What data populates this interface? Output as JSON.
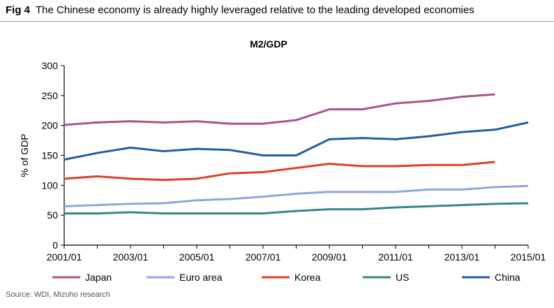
{
  "figure": {
    "label": "Fig 4",
    "caption": "The Chinese economy is already highly leveraged relative to the leading developed economies",
    "source": "Source: WDI, Mizuho research"
  },
  "chart_data": {
    "type": "line",
    "title": "M2/GDP",
    "xlabel": "",
    "ylabel": "% of GDP",
    "ylim": [
      0,
      300
    ],
    "yticks": [
      0,
      50,
      100,
      150,
      200,
      250,
      300
    ],
    "x": [
      "2001/01",
      "2002/01",
      "2003/01",
      "2004/01",
      "2005/01",
      "2006/01",
      "2007/01",
      "2008/01",
      "2009/01",
      "2010/01",
      "2011/01",
      "2012/01",
      "2013/01",
      "2014/01",
      "2015/01"
    ],
    "xtick_labels": [
      "2001/01",
      "2003/01",
      "2005/01",
      "2007/01",
      "2009/01",
      "2011/01",
      "2013/01",
      "2015/01"
    ],
    "grid": false,
    "legend": "bottom",
    "series": [
      {
        "name": "Japan",
        "color": "#a8578a",
        "values": [
          201,
          205,
          207,
          205,
          207,
          203,
          203,
          209,
          227,
          227,
          237,
          241,
          248,
          252,
          null
        ]
      },
      {
        "name": "Euro area",
        "color": "#8ea6d8",
        "values": [
          65,
          67,
          69,
          70,
          75,
          77,
          81,
          86,
          89,
          89,
          89,
          93,
          93,
          97,
          99
        ]
      },
      {
        "name": "Korea",
        "color": "#d9432b",
        "values": [
          111,
          115,
          111,
          109,
          111,
          120,
          122,
          129,
          136,
          132,
          132,
          134,
          134,
          139,
          null
        ]
      },
      {
        "name": "US",
        "color": "#3a8585",
        "values": [
          53,
          53,
          55,
          53,
          53,
          53,
          53,
          57,
          60,
          60,
          63,
          65,
          67,
          69,
          70
        ]
      },
      {
        "name": "China",
        "color": "#2a5aa8",
        "values": [
          143,
          154,
          163,
          157,
          161,
          159,
          150,
          150,
          177,
          179,
          177,
          182,
          189,
          193,
          205
        ]
      }
    ]
  }
}
